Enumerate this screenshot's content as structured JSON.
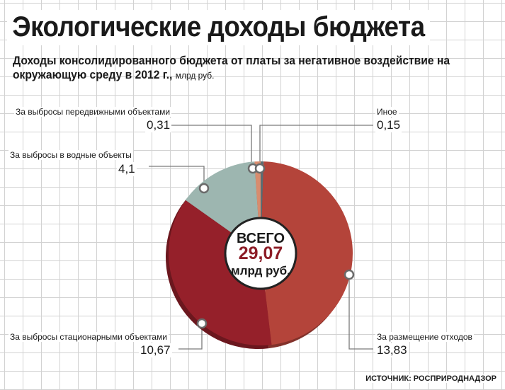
{
  "title": "Экологические доходы бюджета",
  "subtitle": "Доходы консолидированного бюджета от платы за негативное воздействие на окружающую среду в 2012 г.,",
  "subtitle_unit": "млрд руб.",
  "source": "ИСТОЧНИК: РОСПРИРОДНАДЗОР",
  "center": {
    "line1": "ВСЕГО",
    "total": "29,07",
    "line3": "млрд руб."
  },
  "colors": {
    "waste": "#b4443a",
    "stationary": "#95202a",
    "water": "#9db6b0",
    "mobile": "#d88c6e",
    "other": "#5a6e74",
    "total_text": "#8c1c26"
  },
  "labels": {
    "mobile": {
      "name": "За выбросы передвижными объектами",
      "value": "0,31"
    },
    "other": {
      "name": "Иное",
      "value": "0,15"
    },
    "water": {
      "name": "За выбросы в водные объекты",
      "value": "4,1"
    },
    "stationary": {
      "name": "За выбросы стационарными объектами",
      "value": "10,67"
    },
    "waste": {
      "name": "За размещение отходов",
      "value": "13,83"
    }
  },
  "chart_data": {
    "type": "pie",
    "title": "Экологические доходы бюджета",
    "unit": "млрд руб.",
    "total": 29.07,
    "slices": [
      {
        "label": "Иное",
        "value": 0.15
      },
      {
        "label": "За размещение отходов",
        "value": 13.83
      },
      {
        "label": "За выбросы стационарными объектами",
        "value": 10.67
      },
      {
        "label": "За выбросы в водные объекты",
        "value": 4.1
      },
      {
        "label": "За выбросы передвижными объектами",
        "value": 0.31
      }
    ]
  }
}
